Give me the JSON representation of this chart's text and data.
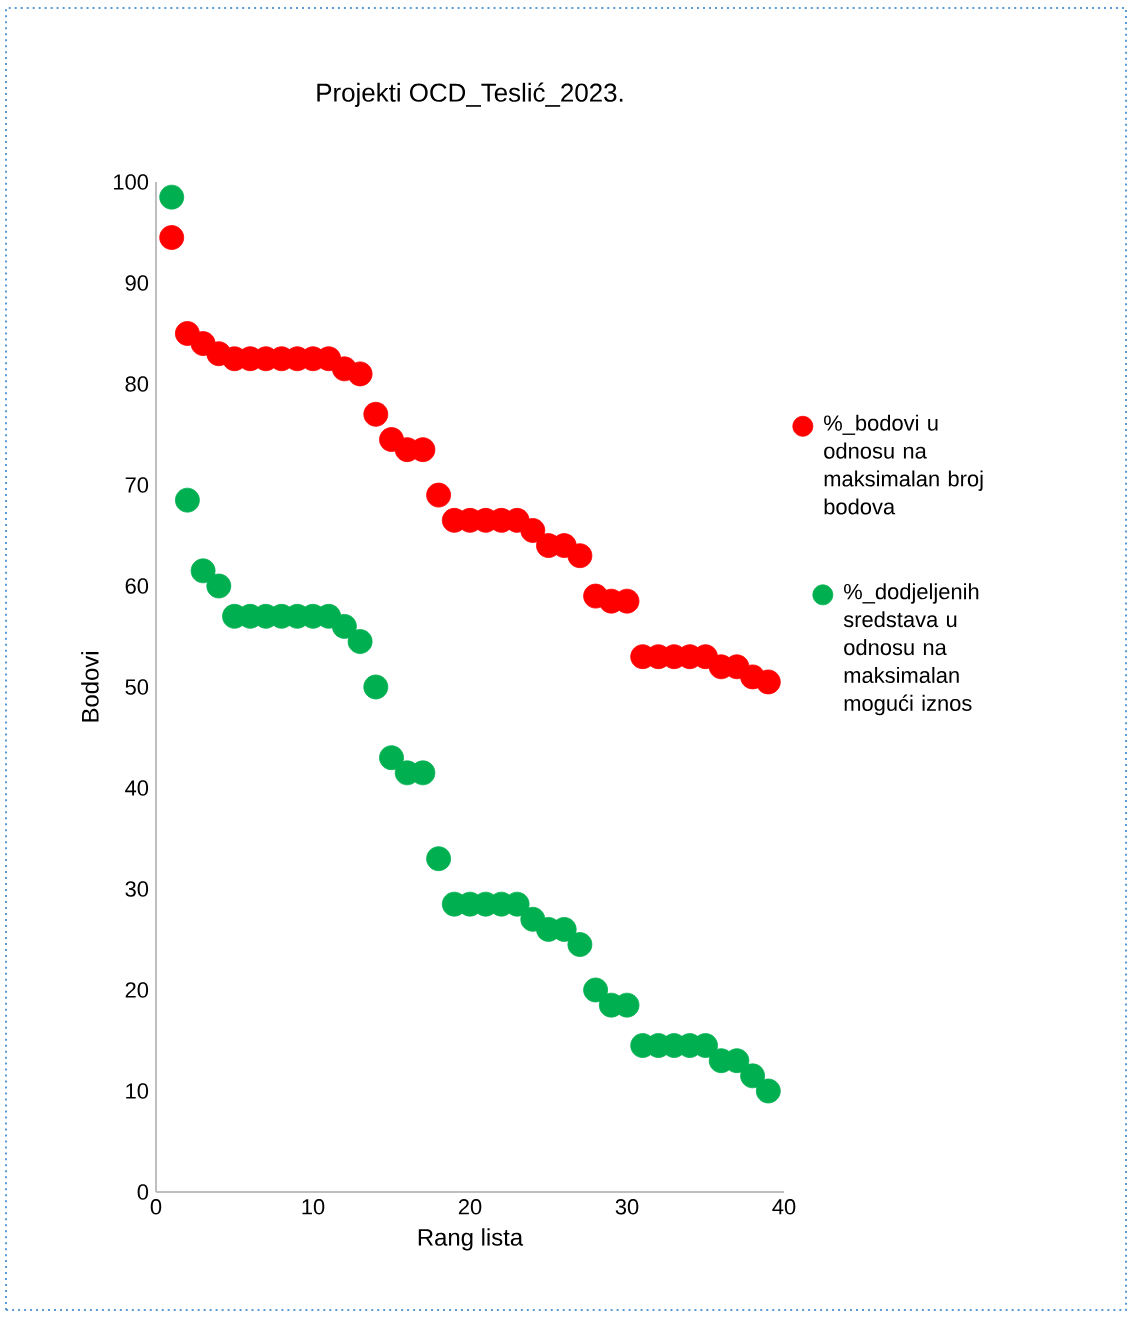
{
  "chart_data": {
    "type": "scatter",
    "title": "Projekti OCD_Teslić_2023.",
    "xlabel": "Rang lista",
    "ylabel": "Bodovi",
    "x": [
      1,
      2,
      3,
      4,
      5,
      6,
      7,
      8,
      9,
      10,
      11,
      12,
      13,
      14,
      15,
      16,
      17,
      18,
      19,
      20,
      21,
      22,
      23,
      24,
      25,
      26,
      27,
      28,
      29,
      30,
      31,
      32,
      33,
      34,
      35,
      36,
      37,
      38,
      39
    ],
    "series": [
      {
        "name": "%_bodovi u odnosu na maksimalan broj bodova",
        "color": "#ff0000",
        "values": [
          94.5,
          85,
          84,
          83,
          82.5,
          82.5,
          82.5,
          82.5,
          82.5,
          82.5,
          82.5,
          81.5,
          81,
          77,
          74.5,
          73.5,
          73.5,
          69,
          66.5,
          66.5,
          66.5,
          66.5,
          66.5,
          65.5,
          64,
          64,
          63,
          59,
          58.5,
          58.5,
          53,
          53,
          53,
          53,
          53,
          52,
          52,
          51,
          50.5
        ]
      },
      {
        "name": "%_dodjeljenih sredstava u odnosu na maksimalan mogući iznos",
        "color": "#00b050",
        "values": [
          98.5,
          68.5,
          61.5,
          60,
          57,
          57,
          57,
          57,
          57,
          57,
          57,
          56,
          54.5,
          50,
          43,
          41.5,
          41.5,
          33,
          28.5,
          28.5,
          28.5,
          28.5,
          28.5,
          27,
          26,
          26,
          24.5,
          20,
          18.5,
          18.5,
          14.5,
          14.5,
          14.5,
          14.5,
          14.5,
          13,
          13,
          11.5,
          10
        ]
      }
    ],
    "xlim": [
      0,
      40
    ],
    "xticks": [
      0,
      10,
      20,
      30,
      40
    ],
    "ylim": [
      0,
      100
    ],
    "yticks": [
      0,
      10,
      20,
      30,
      40,
      50,
      60,
      70,
      80,
      90,
      100
    ],
    "marker": "circle",
    "legend": "right",
    "grid": false
  }
}
